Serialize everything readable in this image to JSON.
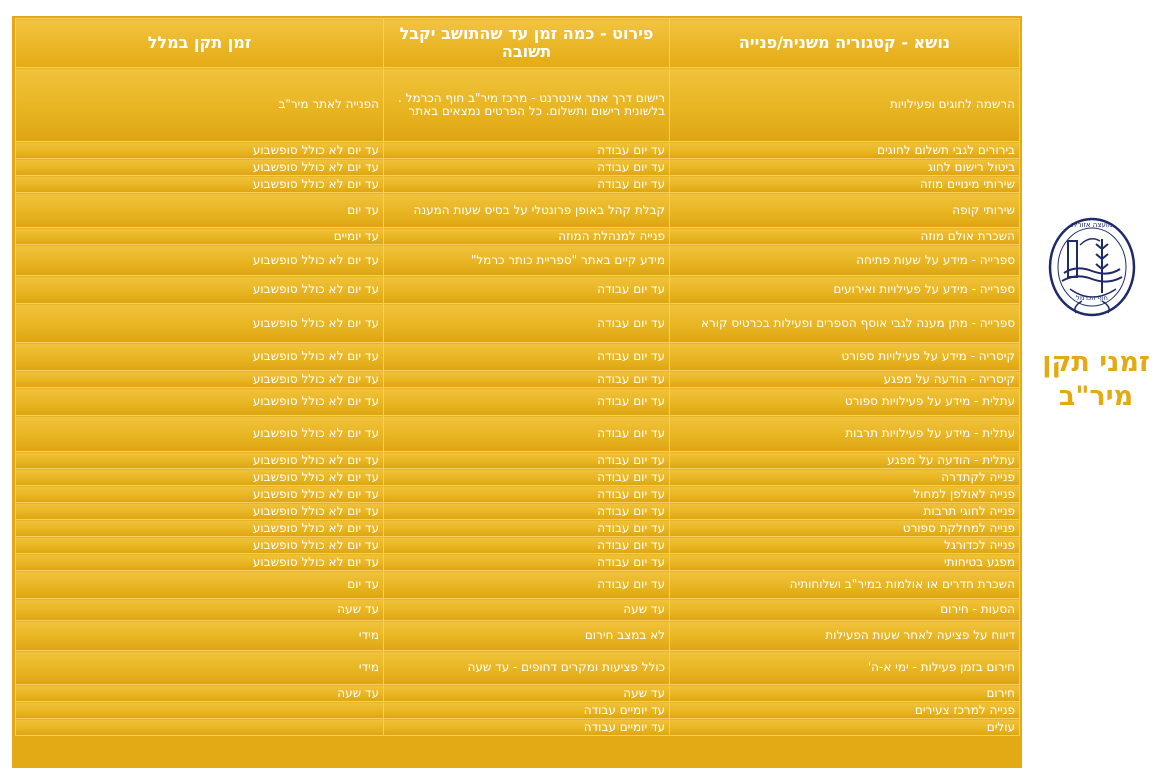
{
  "header": {
    "col_topic": "נושא - קטגוריה משנית/פנייה",
    "col_detail": "פירוט - כמה זמן עד שהתושב יקבל תשובה",
    "col_standard": "זמן תקן במלל"
  },
  "rows": [
    {
      "topic": "הרשמה לחוגים ופעילויות",
      "detail": "רישום דרך אתר אינטרנט - מרכז מיר\"ב חוף הכרמל . בלשונית רישום ותשלום. כל הפרטים נמצאים באתר",
      "standard": "הפנייה לאתר מיר\"ב"
    },
    {
      "topic": "בירורים לגבי תשלום לחוגים",
      "detail": "עד יום עבודה",
      "standard": "עד יום לא כולל סופשבוע"
    },
    {
      "topic": "ביטול רישום לחוג",
      "detail": "עד יום עבודה",
      "standard": "עד יום לא כולל סופשבוע"
    },
    {
      "topic": "שירותי מינויים מוזה",
      "detail": "עד יום עבודה",
      "standard": "עד יום לא כולל סופשבוע"
    },
    {
      "topic": "שירותי קופה",
      "detail": "קבלת קהל באופן פרונטלי על בסיס שעות המענה",
      "standard": "עד יום"
    },
    {
      "topic": "השכרת אולם מוזה",
      "detail": "פנייה למנהלת המוזה",
      "standard": "עד יומיים"
    },
    {
      "topic": "ספרייה - מידע על שעות פתיחה",
      "detail": "מידע קיים באתר \"ספריית כותר כרמל\"",
      "standard": "עד יום לא כולל סופשבוע"
    },
    {
      "topic": "ספרייה - מידע על פעילויות ואירועים",
      "detail": "עד יום עבודה",
      "standard": "עד יום לא כולל סופשבוע"
    },
    {
      "topic": "ספרייה - מתן מענה לגבי אוסף הספרים ופעילות בכרטיס קורא",
      "detail": "עד יום עבודה",
      "standard": "עד יום לא כולל סופשבוע"
    },
    {
      "topic": "קיסריה - מידע על פעילויות ספורט",
      "detail": "עד יום עבודה",
      "standard": "עד יום לא כולל סופשבוע"
    },
    {
      "topic": "קיסריה - הודעה על מפגע",
      "detail": "עד יום עבודה",
      "standard": "עד יום לא כולל סופשבוע"
    },
    {
      "topic": "עתלית - מידע על פעילויות ספורט",
      "detail": "עד יום עבודה",
      "standard": "עד יום לא כולל סופשבוע"
    },
    {
      "topic": "עתלית - מידע על פעילויות תרבות",
      "detail": "עד יום עבודה",
      "standard": "עד יום לא כולל סופשבוע"
    },
    {
      "topic": "עתלית - הודעה על מפגע",
      "detail": "עד יום עבודה",
      "standard": "עד יום לא כולל סופשבוע"
    },
    {
      "topic": "פנייה לקתדרה",
      "detail": "עד יום עבודה",
      "standard": "עד יום לא כולל סופשבוע"
    },
    {
      "topic": "פנייה לאולפן למחול",
      "detail": "עד יום עבודה",
      "standard": "עד יום לא כולל סופשבוע"
    },
    {
      "topic": "פנייה לחוגי תרבות",
      "detail": "עד יום עבודה",
      "standard": "עד יום לא כולל סופשבוע"
    },
    {
      "topic": "פנייה למחלקת ספורט",
      "detail": "עד יום עבודה",
      "standard": "עד יום לא כולל סופשבוע"
    },
    {
      "topic": "פנייה לכדורגל",
      "detail": "עד יום עבודה",
      "standard": "עד יום לא כולל סופשבוע"
    },
    {
      "topic": "מפגע בטיחותי",
      "detail": "עד יום עבודה",
      "standard": "עד יום לא כולל סופשבוע"
    },
    {
      "topic": "השכרת חדרים או אולמות במיר\"ב ושלוחותיה",
      "detail": "עד יום עבודה",
      "standard": "עד יום"
    },
    {
      "topic": "הסעות - חירום",
      "detail": "עד שעה",
      "standard": "עד שעה"
    },
    {
      "topic": "דיווח על פציעה לאחר שעות הפעילות",
      "detail": "לא במצב חירום",
      "standard": "מידי"
    },
    {
      "topic": "חירום בזמן פעילות - ימי א-ה'",
      "detail": "כולל פציעות ומקרים דחופים - עד שעה",
      "standard": "מידי"
    },
    {
      "topic": "חירום",
      "detail": "עד שעה",
      "standard": "עד שעה"
    },
    {
      "topic": "פנייה למרכז צעירים",
      "detail": "עד יומיים עבודה",
      "standard": ""
    },
    {
      "topic": "עולים",
      "detail": "עד יומיים עבודה",
      "standard": ""
    }
  ],
  "brand": {
    "title_line1": "זמני תקן",
    "title_line2": "מיר\"ב",
    "logo_text_top": "מועצה אזורית",
    "logo_text_bottom": "חוף הכרמל"
  }
}
